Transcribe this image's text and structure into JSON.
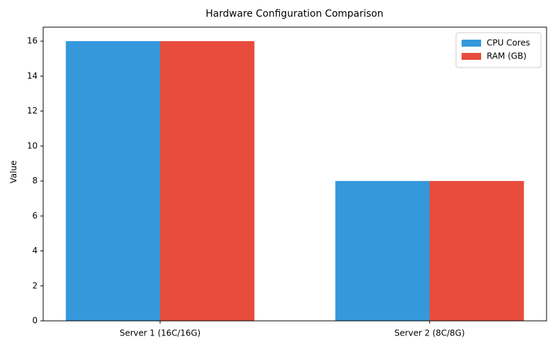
{
  "chart_data": {
    "type": "bar",
    "title": "Hardware Configuration Comparison",
    "ylabel": "Value",
    "categories": [
      "Server 1 (16C/16G)",
      "Server 2 (8C/8G)"
    ],
    "series": [
      {
        "name": "CPU Cores",
        "color": "#3498db",
        "values": [
          16,
          8
        ]
      },
      {
        "name": "RAM (GB)",
        "color": "#e74c3c",
        "values": [
          16,
          8
        ]
      }
    ],
    "ylim": [
      0,
      16.8
    ],
    "yticks": [
      0,
      2,
      4,
      6,
      8,
      10,
      12,
      14,
      16
    ],
    "grid": false,
    "legend": "upper right"
  }
}
